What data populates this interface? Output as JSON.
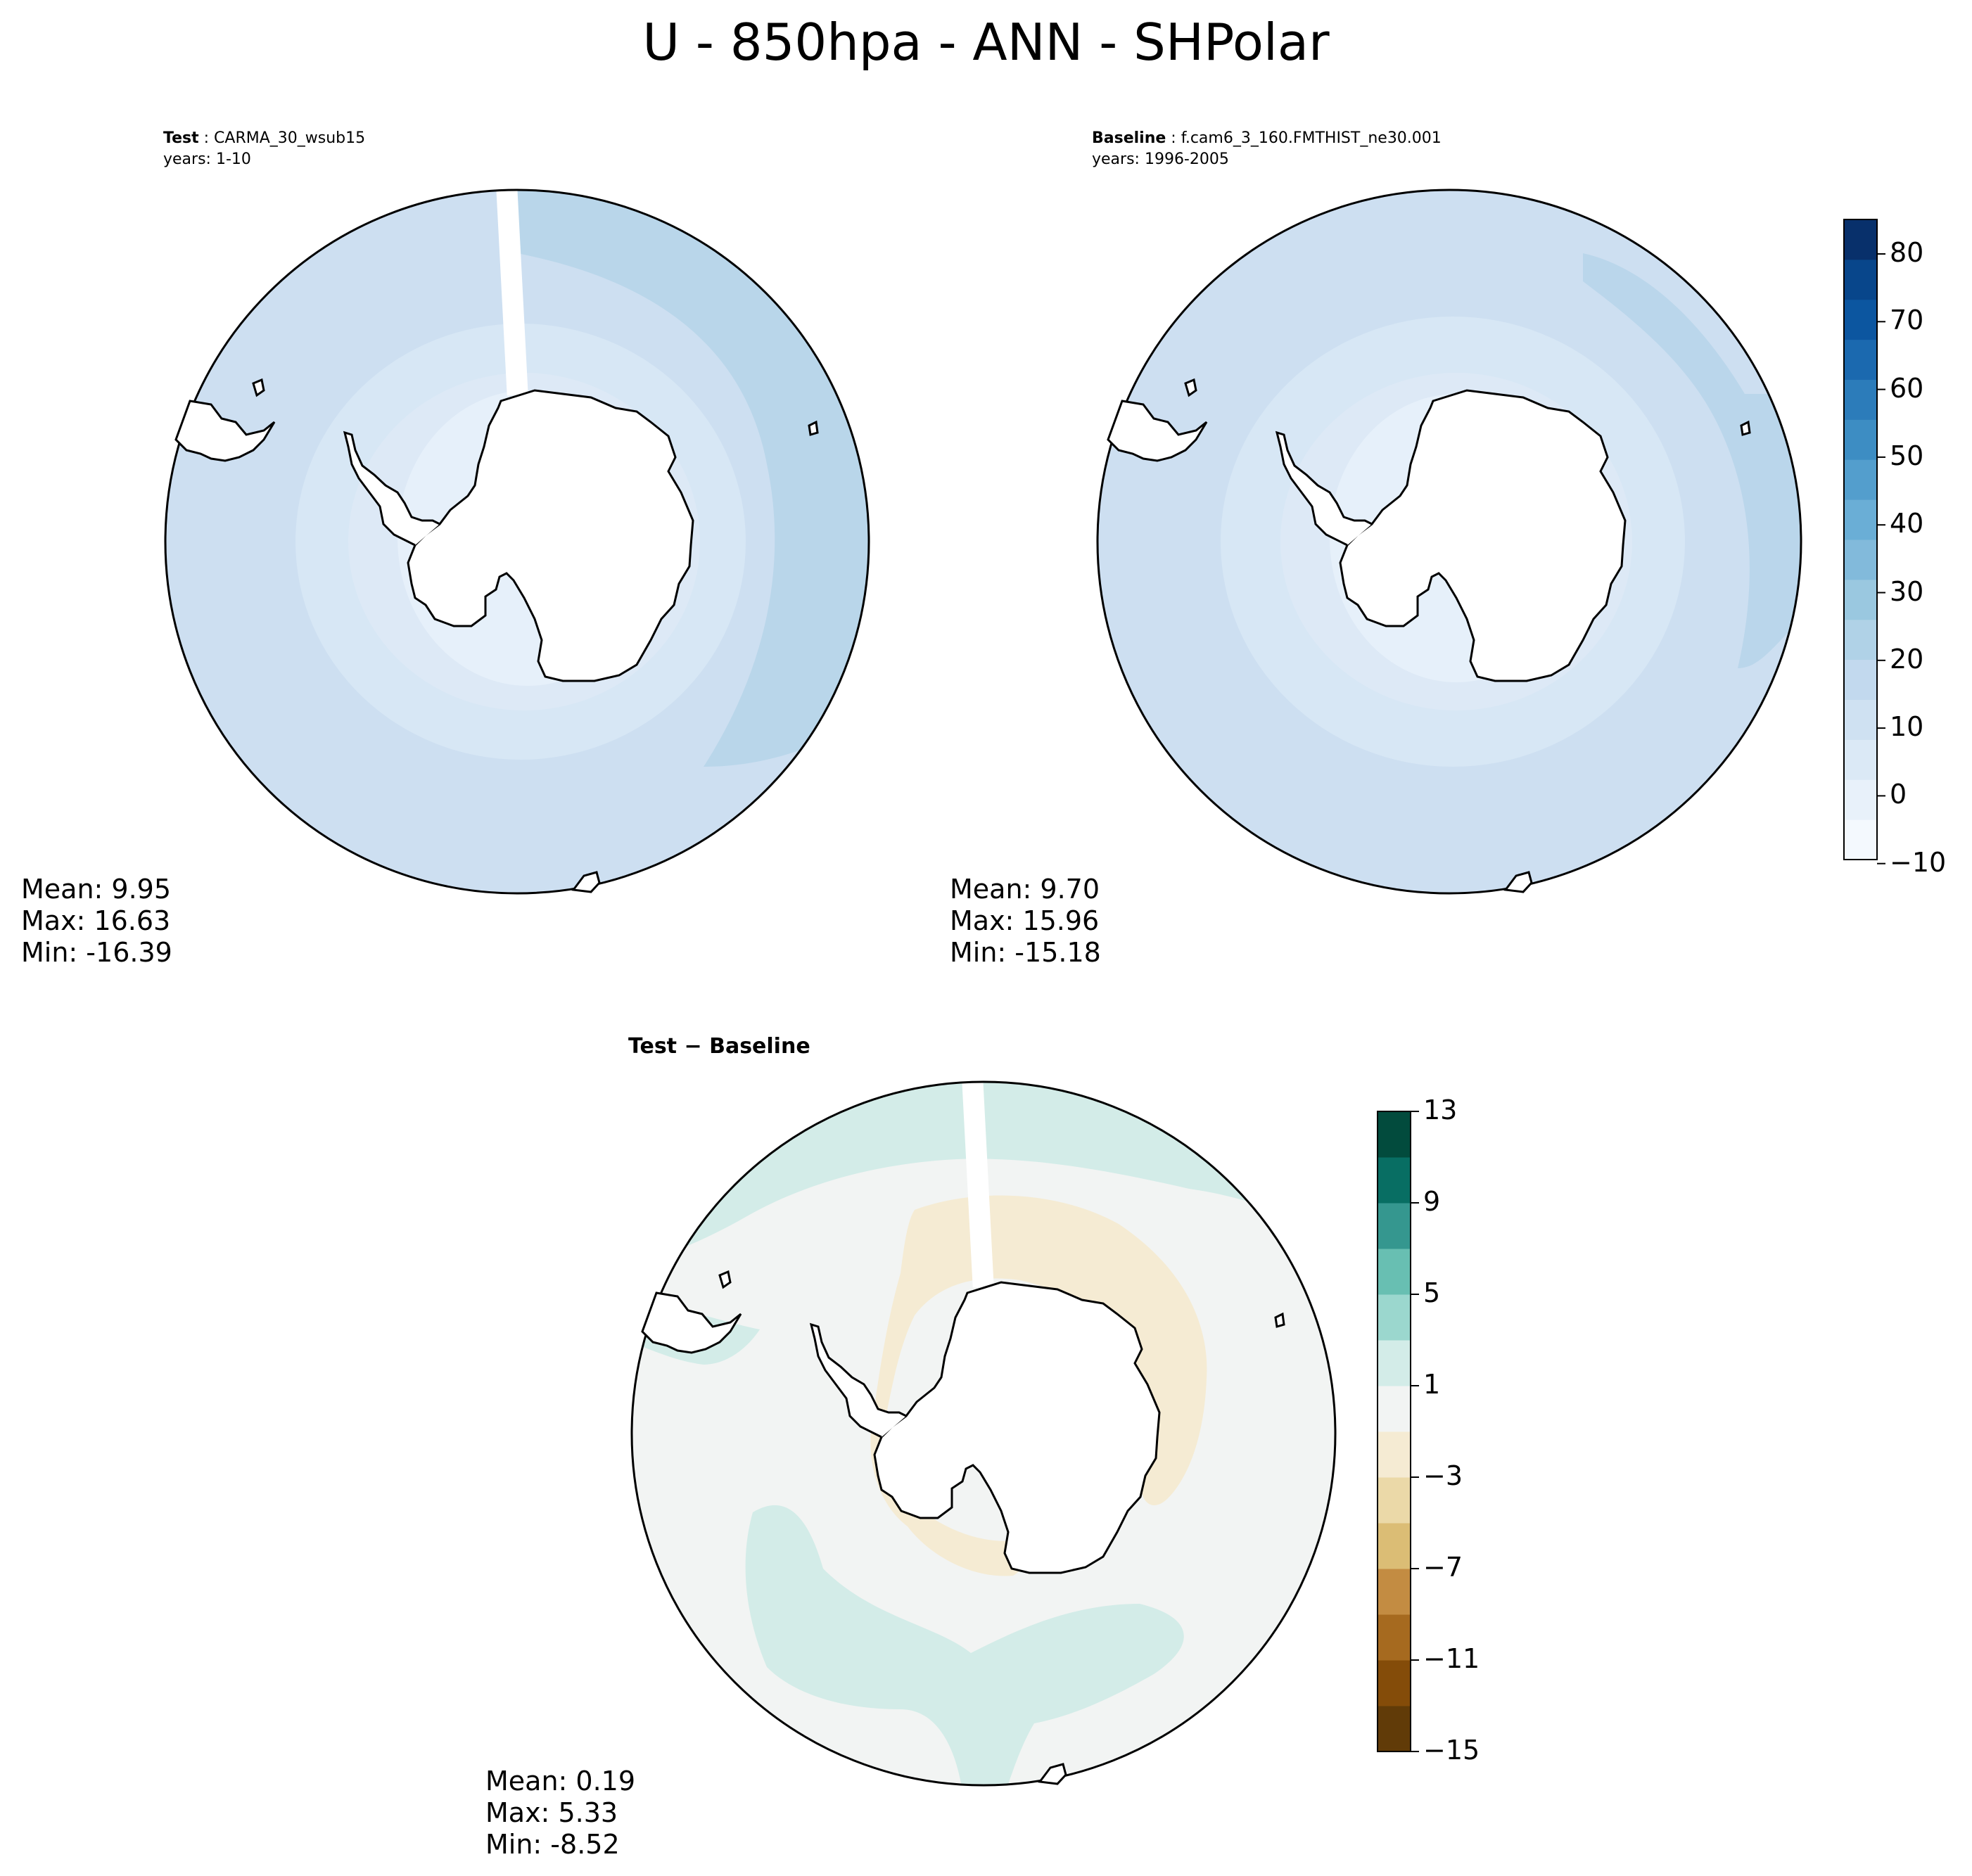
{
  "title": "U - 850hpa - ANN - SHPolar",
  "test_panel": {
    "label": "Test",
    "case": "CARMA_30_wsub15",
    "years": "years: 1-10",
    "mean": "Mean:  9.95",
    "max": "Max: 16.63",
    "min": "Min: -16.39"
  },
  "baseline_panel": {
    "label": "Baseline",
    "case": "f.cam6_3_160.FMTHIST_ne30.001",
    "years": "years: 1996-2005",
    "mean": "Mean:  9.70",
    "max": "Max: 15.96",
    "min": "Min: -15.18"
  },
  "diff_panel": {
    "label_a": "Test",
    "label_op": "−",
    "label_b": "Baseline",
    "mean": "Mean:  0.19",
    "max": "Max:  5.33",
    "min": "Min: -8.52"
  },
  "colorbar_main": {
    "ticks": [
      "80",
      "70",
      "60",
      "50",
      "40",
      "30",
      "20",
      "10",
      "0",
      "−10"
    ],
    "colors": [
      "#f4f9fe",
      "#e8f1fa",
      "#dbe9f6",
      "#cfe1f2",
      "#c2d9ee",
      "#b0d2e7",
      "#9ac8e0",
      "#82badb",
      "#6aaed6",
      "#539ecd",
      "#3d8dc3",
      "#2c7cba",
      "#1b69af",
      "#0c56a0",
      "#08468b",
      "#08306b"
    ]
  },
  "colorbar_diff": {
    "ticks": [
      "13",
      "9",
      "5",
      "1",
      "−3",
      "−7",
      "−11",
      "−15"
    ],
    "colors": [
      "#613b08",
      "#844c09",
      "#a66a1f",
      "#c38c42",
      "#dbbd75",
      "#ebd9a8",
      "#f5ebd3",
      "#f2f4f3",
      "#d3ece8",
      "#9bd7ce",
      "#68bfb2",
      "#35978f",
      "#086e63",
      "#024b3d"
    ]
  },
  "colors": {
    "fill_main_light": "#dbe9f6",
    "fill_main_mid": "#cfe1f2",
    "fill_main_dark": "#b9d6ea",
    "fill_diff_neutral": "#f2f4f3",
    "fill_diff_positive": "#d3ece8",
    "fill_diff_negative": "#f5ebd3"
  }
}
